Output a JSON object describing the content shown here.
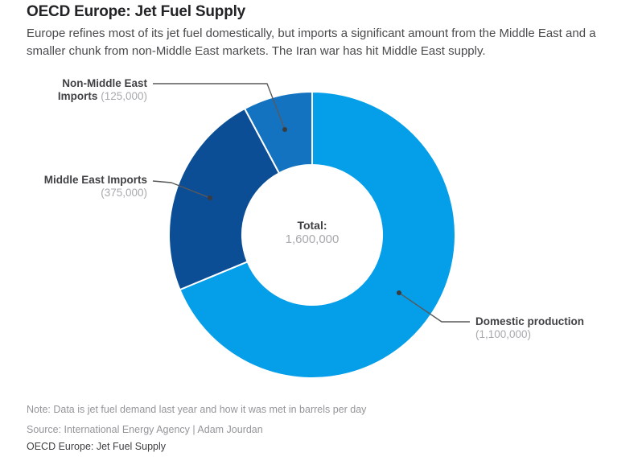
{
  "header": {
    "title": "OECD Europe: Jet Fuel Supply",
    "subtitle": "Europe refines most of its jet fuel domestically, but imports a significant amount from the Middle East and a smaller chunk from non-Middle East markets. The Iran war has hit Middle East supply."
  },
  "chart_data": {
    "type": "pie",
    "subtype": "donut",
    "title": "OECD Europe: Jet Fuel Supply",
    "units": "barrels per day",
    "start_angle_deg": 0,
    "direction": "clockwise",
    "donut_hole_ratio": 0.489,
    "total": 1600000,
    "total_label": "Total:",
    "total_value": "1,600,000",
    "segments": [
      {
        "label": "Domestic production",
        "value": 1100000,
        "color": "#049ee9"
      },
      {
        "label": "Middle East Imports",
        "value": 375000,
        "color": "#0b4e96"
      },
      {
        "label": "Non-Middle East Imports",
        "value": 125000,
        "color": "#1473c1"
      }
    ]
  },
  "callouts": {
    "non_middle_east": {
      "line1": "Non-Middle East",
      "line2_bold": "Imports",
      "value": "(125,000)"
    },
    "middle_east": {
      "label": "Middle East Imports",
      "value": "(375,000)"
    },
    "domestic": {
      "label": "Domestic production",
      "value": "(1,100,000)"
    }
  },
  "footer": {
    "note": "Note: Data is jet fuel demand last year and how it was met in barrels per day",
    "source": "Source: International Energy Agency | Adam Jourdan",
    "caption": "OECD Europe: Jet Fuel Supply"
  }
}
